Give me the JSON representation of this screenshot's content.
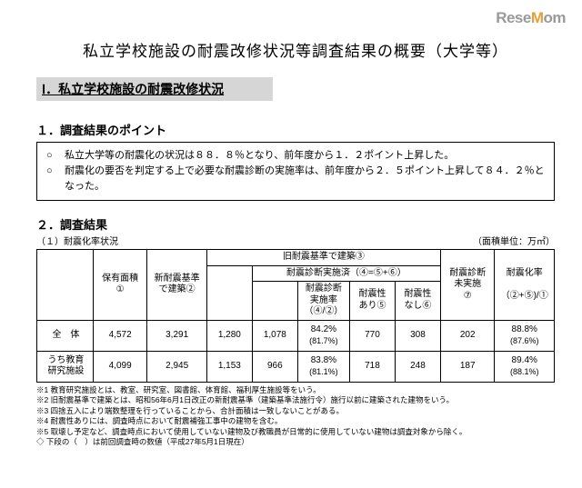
{
  "logo": {
    "part1": "Rese",
    "part2": "M",
    "part3": "om"
  },
  "main_title": "私立学校施設の耐震改修状況等調査結果の概要（大学等）",
  "section_header": "Ⅰ．私立学校施設の耐震改修状況",
  "points": {
    "heading": "１．調査結果のポイント",
    "items": [
      "私立大学等の耐震化の状況は８８．８％となり、前年度から１．２ポイント上昇した。",
      "耐震化の要否を判定する上で必要な耐震診断の実施率は、前年度から２．５ポイント上昇して８４．２％となった。"
    ]
  },
  "results": {
    "heading": "２．調査結果",
    "sub_caption": "（１）耐震化率状況",
    "unit": "（面積単位：万㎡）",
    "headers": {
      "col1": "保有面積\n①",
      "col2": "新耐震基準\nで建築②",
      "group3": "旧耐震基準で建築③",
      "group4": "耐震診断実施済（④=⑤+⑥）",
      "col4": "耐震診断\n実施率\n（④/②）",
      "col5": "耐震性\nあり⑤",
      "col6": "耐震性\nなし⑥",
      "col7": "耐震診断\n未実施\n⑦",
      "col8": "耐震化率\n\n（②+⑤)/①"
    },
    "rows": [
      {
        "label": "全　体",
        "c1": "4,572",
        "c2": "3,291",
        "c3": "1,280",
        "c3b": "1,078",
        "c4": "84.2%",
        "c4s": "(81.7%)",
        "c5": "770",
        "c6": "308",
        "c7": "202",
        "c8": "88.8%",
        "c8s": "(87.6%)"
      },
      {
        "label": "うち教育\n研究施設",
        "c1": "4,099",
        "c2": "2,945",
        "c3": "1,153",
        "c3b": "966",
        "c4": "83.8%",
        "c4s": "(81.1%)",
        "c5": "718",
        "c6": "248",
        "c7": "187",
        "c8": "89.4%",
        "c8s": "(88.1%)"
      }
    ]
  },
  "footnotes": [
    "※1 教育研究施設とは、教室、研究室、図書館、体育館、福利厚生施設等をいう。",
    "※2 旧耐震基準で建築とは、昭和56年6月1日改正の新耐震基準（建築基準法施行令）施行以前に建築された建物をいう。",
    "※3 四捨五入により端数整理を行っていることから、合計面積は一致しないことがある。",
    "※4 耐震性ありには、調査時点において耐震補強工事中の建物を含む。",
    "※5 取壊し予定など、調査時点において使用していない建物及び教職員が日常的に使用していない建物は調査対象から除く。",
    "◇ 下段の（　）は前回調査時の数値（平成27年5月1日現在）"
  ]
}
